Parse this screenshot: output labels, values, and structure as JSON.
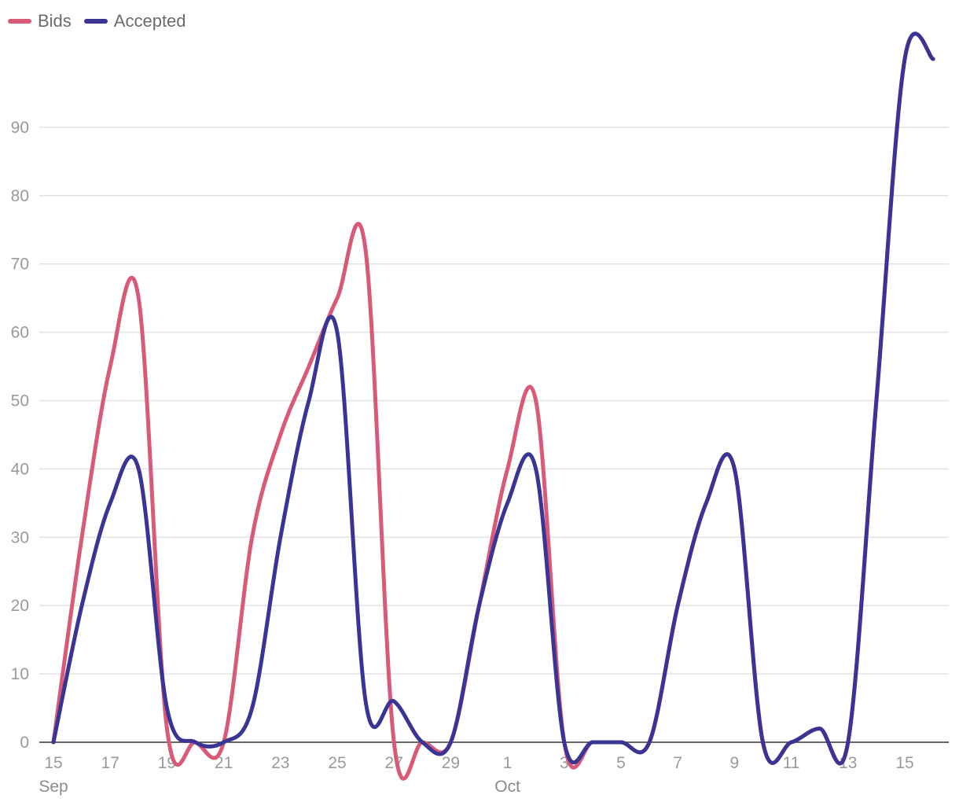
{
  "chart_data": {
    "type": "line",
    "ylim": [
      0,
      100
    ],
    "yticks": [
      0,
      10,
      20,
      30,
      40,
      50,
      60,
      70,
      80,
      90
    ],
    "x_dates": [
      "2020-09-15",
      "2020-09-16",
      "2020-09-17",
      "2020-09-18",
      "2020-09-19",
      "2020-09-20",
      "2020-09-21",
      "2020-09-22",
      "2020-09-23",
      "2020-09-24",
      "2020-09-25",
      "2020-09-26",
      "2020-09-27",
      "2020-09-28",
      "2020-09-29",
      "2020-09-30",
      "2020-10-01",
      "2020-10-02",
      "2020-10-03",
      "2020-10-04",
      "2020-10-05",
      "2020-10-06",
      "2020-10-07",
      "2020-10-08",
      "2020-10-09",
      "2020-10-10",
      "2020-10-11",
      "2020-10-12",
      "2020-10-13",
      "2020-10-14",
      "2020-10-15",
      "2020-10-16"
    ],
    "xticks": [
      {
        "date": "2020-09-15",
        "label": "15",
        "month": "Sep"
      },
      {
        "date": "2020-09-17",
        "label": "17"
      },
      {
        "date": "2020-09-19",
        "label": "19"
      },
      {
        "date": "2020-09-21",
        "label": "21"
      },
      {
        "date": "2020-09-23",
        "label": "23"
      },
      {
        "date": "2020-09-25",
        "label": "25"
      },
      {
        "date": "2020-09-27",
        "label": "27"
      },
      {
        "date": "2020-09-29",
        "label": "29"
      },
      {
        "date": "2020-10-01",
        "label": "1",
        "month": "Oct"
      },
      {
        "date": "2020-10-03",
        "label": "3"
      },
      {
        "date": "2020-10-05",
        "label": "5"
      },
      {
        "date": "2020-10-07",
        "label": "7"
      },
      {
        "date": "2020-10-09",
        "label": "9"
      },
      {
        "date": "2020-10-11",
        "label": "11"
      },
      {
        "date": "2020-10-13",
        "label": "13"
      },
      {
        "date": "2020-10-15",
        "label": "15"
      }
    ],
    "series": [
      {
        "name": "Bids",
        "color": "#d95a78",
        "values": [
          0,
          30,
          55,
          65,
          2,
          0,
          0,
          30,
          45,
          55,
          65,
          72,
          0,
          0,
          0,
          20,
          40,
          50,
          0,
          0,
          0,
          0,
          20,
          35,
          40,
          0,
          0,
          2,
          0,
          50,
          100,
          100
        ]
      },
      {
        "name": "Accepted",
        "color": "#3a3594",
        "values": [
          0,
          20,
          35,
          40,
          5,
          0,
          0,
          5,
          30,
          50,
          60,
          6,
          6,
          0,
          0,
          20,
          35,
          40,
          0,
          0,
          0,
          0,
          20,
          35,
          40,
          0,
          0,
          2,
          0,
          50,
          100,
          100
        ]
      }
    ],
    "grid": true,
    "legend_position": "top-left"
  }
}
